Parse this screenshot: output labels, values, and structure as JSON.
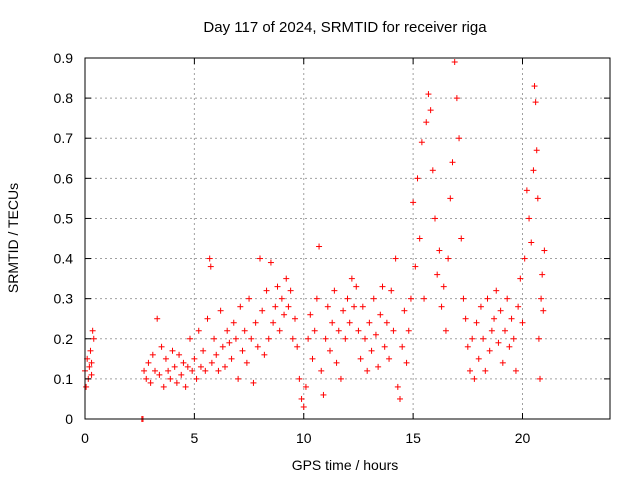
{
  "chart_data": {
    "type": "scatter",
    "title": "Day 117 of 2024, SRMTID for receiver riga",
    "xlabel": "GPS time / hours",
    "ylabel": "SRMTID / TECUs",
    "xlim": [
      0,
      24
    ],
    "ylim": [
      0,
      0.9
    ],
    "x_ticks": [
      0,
      5,
      10,
      15,
      20
    ],
    "y_ticks": [
      0,
      0.1,
      0.2,
      0.3,
      0.4,
      0.5,
      0.6,
      0.7,
      0.8,
      0.9
    ],
    "x_tick_labels": [
      "0",
      "5",
      "10",
      "15",
      "20"
    ],
    "y_tick_labels": [
      "0",
      "0.1",
      "0.2",
      "0.3",
      "0.4",
      "0.5",
      "0.6",
      "0.7",
      "0.8",
      "0.9"
    ],
    "grid": true,
    "marker": "+",
    "color": "#ff0000",
    "series": [
      {
        "name": "SRMTID",
        "points": [
          [
            0.0,
            0.12
          ],
          [
            0.05,
            0.08
          ],
          [
            0.1,
            0.15
          ],
          [
            0.15,
            0.1
          ],
          [
            0.2,
            0.13
          ],
          [
            0.25,
            0.17
          ],
          [
            0.3,
            0.11
          ],
          [
            0.35,
            0.22
          ],
          [
            0.4,
            0.2
          ],
          [
            0.3,
            0.14
          ],
          [
            2.6,
            0.0
          ],
          [
            2.65,
            0.0
          ],
          [
            2.7,
            0.12
          ],
          [
            2.8,
            0.1
          ],
          [
            2.9,
            0.14
          ],
          [
            3.0,
            0.09
          ],
          [
            3.1,
            0.16
          ],
          [
            3.2,
            0.12
          ],
          [
            3.3,
            0.25
          ],
          [
            3.4,
            0.11
          ],
          [
            3.5,
            0.18
          ],
          [
            3.6,
            0.08
          ],
          [
            3.7,
            0.15
          ],
          [
            3.8,
            0.12
          ],
          [
            3.9,
            0.1
          ],
          [
            4.0,
            0.17
          ],
          [
            4.1,
            0.13
          ],
          [
            4.2,
            0.09
          ],
          [
            4.3,
            0.16
          ],
          [
            4.4,
            0.11
          ],
          [
            4.5,
            0.14
          ],
          [
            4.6,
            0.08
          ],
          [
            4.7,
            0.13
          ],
          [
            4.8,
            0.2
          ],
          [
            4.9,
            0.12
          ],
          [
            5.0,
            0.15
          ],
          [
            5.1,
            0.1
          ],
          [
            5.2,
            0.22
          ],
          [
            5.3,
            0.13
          ],
          [
            5.4,
            0.17
          ],
          [
            5.5,
            0.12
          ],
          [
            5.6,
            0.25
          ],
          [
            5.7,
            0.4
          ],
          [
            5.75,
            0.38
          ],
          [
            5.8,
            0.14
          ],
          [
            5.9,
            0.2
          ],
          [
            6.0,
            0.16
          ],
          [
            6.1,
            0.12
          ],
          [
            6.2,
            0.27
          ],
          [
            6.3,
            0.18
          ],
          [
            6.4,
            0.13
          ],
          [
            6.5,
            0.22
          ],
          [
            6.6,
            0.19
          ],
          [
            6.7,
            0.15
          ],
          [
            6.8,
            0.24
          ],
          [
            6.9,
            0.2
          ],
          [
            7.0,
            0.1
          ],
          [
            7.1,
            0.28
          ],
          [
            7.2,
            0.17
          ],
          [
            7.3,
            0.22
          ],
          [
            7.4,
            0.14
          ],
          [
            7.5,
            0.3
          ],
          [
            7.6,
            0.2
          ],
          [
            7.7,
            0.09
          ],
          [
            7.8,
            0.24
          ],
          [
            7.9,
            0.18
          ],
          [
            8.0,
            0.4
          ],
          [
            8.1,
            0.27
          ],
          [
            8.2,
            0.16
          ],
          [
            8.3,
            0.32
          ],
          [
            8.4,
            0.2
          ],
          [
            8.5,
            0.39
          ],
          [
            8.6,
            0.24
          ],
          [
            8.7,
            0.28
          ],
          [
            8.8,
            0.33
          ],
          [
            8.9,
            0.22
          ],
          [
            9.0,
            0.3
          ],
          [
            9.1,
            0.26
          ],
          [
            9.2,
            0.35
          ],
          [
            9.3,
            0.28
          ],
          [
            9.4,
            0.32
          ],
          [
            9.5,
            0.2
          ],
          [
            9.6,
            0.25
          ],
          [
            9.7,
            0.18
          ],
          [
            9.8,
            0.1
          ],
          [
            9.9,
            0.05
          ],
          [
            10.0,
            0.03
          ],
          [
            10.1,
            0.08
          ],
          [
            10.2,
            0.2
          ],
          [
            10.3,
            0.26
          ],
          [
            10.4,
            0.15
          ],
          [
            10.5,
            0.22
          ],
          [
            10.6,
            0.3
          ],
          [
            10.7,
            0.43
          ],
          [
            10.8,
            0.12
          ],
          [
            10.9,
            0.06
          ],
          [
            11.0,
            0.2
          ],
          [
            11.1,
            0.28
          ],
          [
            11.2,
            0.17
          ],
          [
            11.3,
            0.24
          ],
          [
            11.4,
            0.32
          ],
          [
            11.5,
            0.14
          ],
          [
            11.6,
            0.22
          ],
          [
            11.7,
            0.1
          ],
          [
            11.8,
            0.27
          ],
          [
            11.9,
            0.2
          ],
          [
            12.0,
            0.3
          ],
          [
            12.1,
            0.24
          ],
          [
            12.2,
            0.35
          ],
          [
            12.3,
            0.28
          ],
          [
            12.4,
            0.33
          ],
          [
            12.5,
            0.22
          ],
          [
            12.6,
            0.15
          ],
          [
            12.7,
            0.28
          ],
          [
            12.8,
            0.2
          ],
          [
            12.9,
            0.12
          ],
          [
            13.0,
            0.24
          ],
          [
            13.1,
            0.17
          ],
          [
            13.2,
            0.3
          ],
          [
            13.3,
            0.21
          ],
          [
            13.4,
            0.13
          ],
          [
            13.5,
            0.26
          ],
          [
            13.6,
            0.33
          ],
          [
            13.7,
            0.18
          ],
          [
            13.8,
            0.24
          ],
          [
            13.9,
            0.15
          ],
          [
            14.0,
            0.32
          ],
          [
            14.1,
            0.22
          ],
          [
            14.2,
            0.4
          ],
          [
            14.3,
            0.08
          ],
          [
            14.4,
            0.05
          ],
          [
            14.5,
            0.18
          ],
          [
            14.6,
            0.27
          ],
          [
            14.7,
            0.14
          ],
          [
            14.8,
            0.22
          ],
          [
            14.9,
            0.3
          ],
          [
            15.0,
            0.54
          ],
          [
            15.1,
            0.38
          ],
          [
            15.2,
            0.6
          ],
          [
            15.3,
            0.45
          ],
          [
            15.4,
            0.69
          ],
          [
            15.5,
            0.3
          ],
          [
            15.6,
            0.74
          ],
          [
            15.7,
            0.81
          ],
          [
            15.8,
            0.77
          ],
          [
            15.9,
            0.62
          ],
          [
            16.0,
            0.5
          ],
          [
            16.1,
            0.36
          ],
          [
            16.2,
            0.42
          ],
          [
            16.3,
            0.28
          ],
          [
            16.4,
            0.33
          ],
          [
            16.5,
            0.22
          ],
          [
            16.6,
            0.4
          ],
          [
            16.7,
            0.55
          ],
          [
            16.8,
            0.64
          ],
          [
            16.9,
            0.89
          ],
          [
            17.0,
            0.8
          ],
          [
            17.1,
            0.7
          ],
          [
            17.2,
            0.45
          ],
          [
            17.3,
            0.3
          ],
          [
            17.4,
            0.25
          ],
          [
            17.5,
            0.18
          ],
          [
            17.6,
            0.12
          ],
          [
            17.7,
            0.2
          ],
          [
            17.8,
            0.1
          ],
          [
            17.9,
            0.24
          ],
          [
            18.0,
            0.15
          ],
          [
            18.1,
            0.28
          ],
          [
            18.2,
            0.2
          ],
          [
            18.3,
            0.12
          ],
          [
            18.4,
            0.3
          ],
          [
            18.5,
            0.17
          ],
          [
            18.6,
            0.22
          ],
          [
            18.7,
            0.25
          ],
          [
            18.8,
            0.32
          ],
          [
            18.9,
            0.19
          ],
          [
            19.0,
            0.27
          ],
          [
            19.1,
            0.14
          ],
          [
            19.2,
            0.22
          ],
          [
            19.3,
            0.3
          ],
          [
            19.4,
            0.18
          ],
          [
            19.5,
            0.25
          ],
          [
            19.6,
            0.2
          ],
          [
            19.7,
            0.12
          ],
          [
            19.8,
            0.28
          ],
          [
            19.9,
            0.35
          ],
          [
            20.0,
            0.24
          ],
          [
            20.1,
            0.4
          ],
          [
            20.2,
            0.57
          ],
          [
            20.3,
            0.5
          ],
          [
            20.4,
            0.44
          ],
          [
            20.5,
            0.62
          ],
          [
            20.55,
            0.83
          ],
          [
            20.6,
            0.79
          ],
          [
            20.65,
            0.67
          ],
          [
            20.7,
            0.55
          ],
          [
            20.75,
            0.2
          ],
          [
            20.8,
            0.1
          ],
          [
            20.85,
            0.3
          ],
          [
            20.9,
            0.36
          ],
          [
            20.95,
            0.27
          ],
          [
            21.0,
            0.42
          ]
        ]
      }
    ]
  }
}
